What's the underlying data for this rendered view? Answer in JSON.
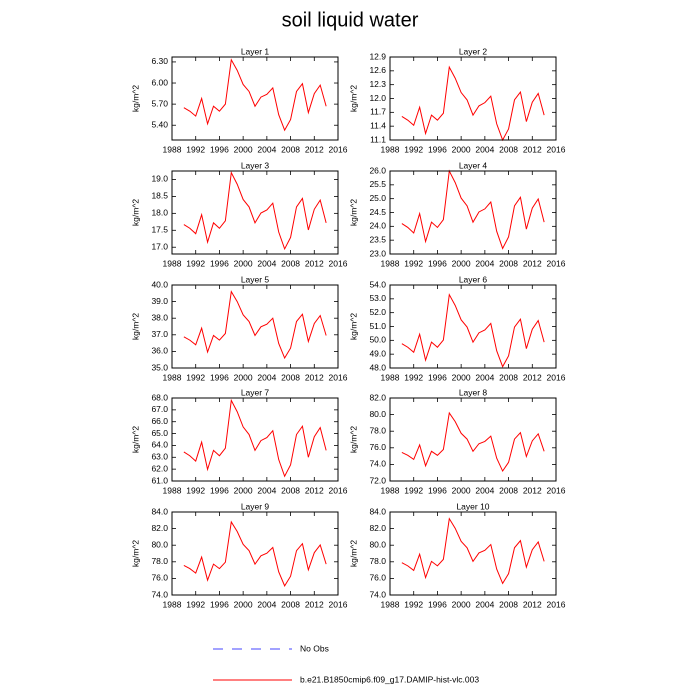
{
  "title": "soil liquid water",
  "legend": [
    {
      "name": "No Obs",
      "color": "#4444ff",
      "dash": true
    },
    {
      "name": "b.e21.B1850cmip6.f09_g17.DAMIP-hist-vlc.003",
      "color": "#ff0000"
    }
  ],
  "chart_data": [
    {
      "type": "line",
      "title": "Layer 1",
      "ylabel": "kg/m^2",
      "x": [
        1990,
        1991,
        1992,
        1993,
        1994,
        1995,
        1996,
        1997,
        1998,
        1999,
        2000,
        2001,
        2002,
        2003,
        2004,
        2005,
        2006,
        2007,
        2008,
        2009,
        2010,
        2011,
        2012,
        2013,
        2014
      ],
      "series": [
        {
          "color": "#ff0000",
          "values": [
            5.65,
            5.6,
            5.53,
            5.78,
            5.42,
            5.67,
            5.6,
            5.7,
            6.33,
            6.18,
            5.98,
            5.88,
            5.67,
            5.8,
            5.84,
            5.93,
            5.55,
            5.33,
            5.48,
            5.88,
            5.99,
            5.58,
            5.85,
            5.97,
            5.67
          ]
        }
      ],
      "xlim": [
        1988,
        2016
      ],
      "xticks": [
        1988,
        1992,
        1996,
        2000,
        2004,
        2008,
        2012,
        2016
      ],
      "ylim": [
        5.19,
        6.37
      ],
      "yticks": [
        {
          "value": 5.4,
          "label": "5.40"
        },
        {
          "value": 5.7,
          "label": "5.70"
        },
        {
          "value": 6.0,
          "label": "6.00"
        },
        {
          "value": 6.3,
          "label": "6.30"
        }
      ]
    },
    {
      "type": "line",
      "title": "Layer 2",
      "ylabel": "kg/m^2",
      "x": [
        1990,
        1991,
        1992,
        1993,
        1994,
        1995,
        1996,
        1997,
        1998,
        1999,
        2000,
        2001,
        2002,
        2003,
        2004,
        2005,
        2006,
        2007,
        2008,
        2009,
        2010,
        2011,
        2012,
        2013,
        2014
      ],
      "series": [
        {
          "color": "#ff0000",
          "values": [
            11.61,
            11.53,
            11.42,
            11.81,
            11.24,
            11.64,
            11.53,
            11.68,
            12.68,
            12.44,
            12.13,
            11.97,
            11.64,
            11.84,
            11.91,
            12.05,
            11.45,
            11.1,
            11.34,
            11.97,
            12.14,
            11.5,
            11.92,
            12.11,
            11.64
          ]
        }
      ],
      "xlim": [
        1988,
        2016
      ],
      "xticks": [
        1988,
        1992,
        1996,
        2000,
        2004,
        2008,
        2012,
        2016
      ],
      "ylim": [
        11.1,
        12.9
      ],
      "yticks": [
        11.1,
        11.4,
        11.7,
        {
          "value": 12,
          "label": "12.0"
        },
        12.3,
        12.6,
        12.9
      ]
    },
    {
      "type": "line",
      "title": "Layer 3",
      "ylabel": "kg/m^2",
      "x": [
        1990,
        1991,
        1992,
        1993,
        1994,
        1995,
        1996,
        1997,
        1998,
        1999,
        2000,
        2001,
        2002,
        2003,
        2004,
        2005,
        2006,
        2007,
        2008,
        2009,
        2010,
        2011,
        2012,
        2013,
        2014
      ],
      "series": [
        {
          "color": "#ff0000",
          "values": [
            17.67,
            17.56,
            17.4,
            17.96,
            17.15,
            17.72,
            17.56,
            17.78,
            19.2,
            18.86,
            18.41,
            18.19,
            17.72,
            18.01,
            18.1,
            18.3,
            17.45,
            16.95,
            17.29,
            18.19,
            18.44,
            17.51,
            18.12,
            18.39,
            17.72
          ]
        }
      ],
      "xlim": [
        1988,
        2016
      ],
      "xticks": [
        1988,
        1992,
        1996,
        2000,
        2004,
        2008,
        2012,
        2016
      ],
      "ylim": [
        16.8,
        19.25
      ],
      "yticks": [
        {
          "value": 17,
          "label": "17.0"
        },
        17.5,
        {
          "value": 18,
          "label": "18.0"
        },
        18.5,
        {
          "value": 19,
          "label": "19.0"
        }
      ]
    },
    {
      "type": "line",
      "title": "Layer 4",
      "ylabel": "kg/m^2",
      "x": [
        1990,
        1991,
        1992,
        1993,
        1994,
        1995,
        1996,
        1997,
        1998,
        1999,
        2000,
        2001,
        2002,
        2003,
        2004,
        2005,
        2006,
        2007,
        2008,
        2009,
        2010,
        2011,
        2012,
        2013,
        2014
      ],
      "series": [
        {
          "color": "#ff0000",
          "values": [
            24.1,
            23.96,
            23.76,
            24.46,
            23.45,
            24.15,
            23.96,
            24.24,
            26.0,
            25.58,
            25.02,
            24.74,
            24.15,
            24.52,
            24.63,
            24.88,
            23.82,
            23.2,
            23.62,
            24.74,
            25.05,
            23.9,
            24.66,
            24.99,
            24.15
          ]
        }
      ],
      "xlim": [
        1988,
        2016
      ],
      "xticks": [
        1988,
        1992,
        1996,
        2000,
        2004,
        2008,
        2012,
        2016
      ],
      "ylim": [
        23,
        26
      ],
      "yticks": [
        {
          "value": 23,
          "label": "23.0"
        },
        23.5,
        {
          "value": 24,
          "label": "24.0"
        },
        24.5,
        {
          "value": 25,
          "label": "25.0"
        },
        25.5,
        {
          "value": 26,
          "label": "26.0"
        }
      ]
    },
    {
      "type": "line",
      "title": "Layer 5",
      "ylabel": "kg/m^2",
      "x": [
        1990,
        1991,
        1992,
        1993,
        1994,
        1995,
        1996,
        1997,
        1998,
        1999,
        2000,
        2001,
        2002,
        2003,
        2004,
        2005,
        2006,
        2007,
        2008,
        2009,
        2010,
        2011,
        2012,
        2013,
        2014
      ],
      "series": [
        {
          "color": "#ff0000",
          "values": [
            36.88,
            36.68,
            36.4,
            37.4,
            35.96,
            36.96,
            36.68,
            37.08,
            39.6,
            39.0,
            38.2,
            37.8,
            36.96,
            37.48,
            37.64,
            38.0,
            36.48,
            35.6,
            36.2,
            37.8,
            38.24,
            36.6,
            37.68,
            38.16,
            36.96
          ]
        }
      ],
      "xlim": [
        1988,
        2016
      ],
      "xticks": [
        1988,
        1992,
        1996,
        2000,
        2004,
        2008,
        2012,
        2016
      ],
      "ylim": [
        35,
        40
      ],
      "yticks": [
        {
          "value": 35,
          "label": "35.0"
        },
        {
          "value": 36,
          "label": "36.0"
        },
        {
          "value": 37,
          "label": "37.0"
        },
        {
          "value": 38,
          "label": "38.0"
        },
        {
          "value": 39,
          "label": "39.0"
        },
        {
          "value": 40,
          "label": "40.0"
        }
      ]
    },
    {
      "type": "line",
      "title": "Layer 6",
      "ylabel": "kg/m^2",
      "x": [
        1990,
        1991,
        1992,
        1993,
        1994,
        1995,
        1996,
        1997,
        1998,
        1999,
        2000,
        2001,
        2002,
        2003,
        2004,
        2005,
        2006,
        2007,
        2008,
        2009,
        2010,
        2011,
        2012,
        2013,
        2014
      ],
      "series": [
        {
          "color": "#ff0000",
          "values": [
            49.76,
            49.5,
            49.14,
            50.44,
            48.57,
            49.87,
            49.5,
            50.02,
            53.3,
            52.52,
            51.48,
            50.96,
            49.87,
            50.54,
            50.75,
            51.22,
            49.24,
            48.1,
            48.88,
            50.96,
            51.53,
            49.4,
            50.8,
            51.43,
            49.87
          ]
        }
      ],
      "xlim": [
        1988,
        2016
      ],
      "xticks": [
        1988,
        1992,
        1996,
        2000,
        2004,
        2008,
        2012,
        2016
      ],
      "ylim": [
        48,
        54
      ],
      "yticks": [
        {
          "value": 48,
          "label": "48.0"
        },
        {
          "value": 49,
          "label": "49.0"
        },
        {
          "value": 50,
          "label": "50.0"
        },
        {
          "value": 51,
          "label": "51.0"
        },
        {
          "value": 52,
          "label": "52.0"
        },
        {
          "value": 53,
          "label": "53.0"
        },
        {
          "value": 54,
          "label": "54.0"
        }
      ]
    },
    {
      "type": "line",
      "title": "Layer 7",
      "ylabel": "kg/m^2",
      "x": [
        1990,
        1991,
        1992,
        1993,
        1994,
        1995,
        1996,
        1997,
        1998,
        1999,
        2000,
        2001,
        2002,
        2003,
        2004,
        2005,
        2006,
        2007,
        2008,
        2009,
        2010,
        2011,
        2012,
        2013,
        2014
      ],
      "series": [
        {
          "color": "#ff0000",
          "values": [
            63.45,
            63.13,
            62.68,
            64.28,
            61.98,
            63.58,
            63.13,
            63.77,
            67.8,
            66.84,
            65.56,
            64.92,
            63.58,
            64.41,
            64.66,
            65.24,
            62.81,
            61.4,
            62.36,
            64.92,
            65.62,
            63.0,
            64.73,
            65.5,
            63.58
          ]
        }
      ],
      "xlim": [
        1988,
        2016
      ],
      "xticks": [
        1988,
        1992,
        1996,
        2000,
        2004,
        2008,
        2012,
        2016
      ],
      "ylim": [
        61,
        68
      ],
      "yticks": [
        {
          "value": 61,
          "label": "61.0"
        },
        {
          "value": 62,
          "label": "62.0"
        },
        {
          "value": 63,
          "label": "63.0"
        },
        {
          "value": 64,
          "label": "64.0"
        },
        {
          "value": 65,
          "label": "65.0"
        },
        {
          "value": 66,
          "label": "66.0"
        },
        {
          "value": 67,
          "label": "67.0"
        },
        {
          "value": 68,
          "label": "68.0"
        }
      ]
    },
    {
      "type": "line",
      "title": "Layer 8",
      "ylabel": "kg/m^2",
      "x": [
        1990,
        1991,
        1992,
        1993,
        1994,
        1995,
        1996,
        1997,
        1998,
        1999,
        2000,
        2001,
        2002,
        2003,
        2004,
        2005,
        2006,
        2007,
        2008,
        2009,
        2010,
        2011,
        2012,
        2013,
        2014
      ],
      "series": [
        {
          "color": "#ff0000",
          "values": [
            75.44,
            75.09,
            74.6,
            76.35,
            73.83,
            75.58,
            75.09,
            75.79,
            80.2,
            79.15,
            77.75,
            77.05,
            75.58,
            76.49,
            76.77,
            77.4,
            74.74,
            73.2,
            74.25,
            77.05,
            77.82,
            74.95,
            76.84,
            77.68,
            75.58
          ]
        }
      ],
      "xlim": [
        1988,
        2016
      ],
      "xticks": [
        1988,
        1992,
        1996,
        2000,
        2004,
        2008,
        2012,
        2016
      ],
      "ylim": [
        72,
        82
      ],
      "yticks": [
        {
          "value": 72,
          "label": "72.0"
        },
        {
          "value": 74,
          "label": "74.0"
        },
        {
          "value": 76,
          "label": "76.0"
        },
        {
          "value": 78,
          "label": "78.0"
        },
        {
          "value": 80,
          "label": "80.0"
        },
        {
          "value": 82,
          "label": "82.0"
        }
      ]
    },
    {
      "type": "line",
      "title": "Layer 9",
      "ylabel": "kg/m^2",
      "x": [
        1990,
        1991,
        1992,
        1993,
        1994,
        1995,
        1996,
        1997,
        1998,
        1999,
        2000,
        2001,
        2002,
        2003,
        2004,
        2005,
        2006,
        2007,
        2008,
        2009,
        2010,
        2011,
        2012,
        2013,
        2014
      ],
      "series": [
        {
          "color": "#ff0000",
          "values": [
            77.56,
            77.18,
            76.64,
            78.57,
            75.79,
            77.72,
            77.18,
            77.95,
            82.8,
            81.65,
            80.11,
            79.34,
            77.72,
            78.72,
            79.03,
            79.72,
            76.79,
            75.1,
            76.26,
            79.34,
            80.18,
            77.03,
            79.1,
            80.03,
            77.72
          ]
        }
      ],
      "xlim": [
        1988,
        2016
      ],
      "xticks": [
        1988,
        1992,
        1996,
        2000,
        2004,
        2008,
        2012,
        2016
      ],
      "ylim": [
        74,
        84
      ],
      "yticks": [
        {
          "value": 74,
          "label": "74.0"
        },
        {
          "value": 76,
          "label": "76.0"
        },
        {
          "value": 78,
          "label": "78.0"
        },
        {
          "value": 80,
          "label": "80.0"
        },
        {
          "value": 82,
          "label": "82.0"
        },
        {
          "value": 84,
          "label": "84.0"
        }
      ]
    },
    {
      "type": "line",
      "title": "Layer 10",
      "ylabel": "kg/m^2",
      "x": [
        1990,
        1991,
        1992,
        1993,
        1994,
        1995,
        1996,
        1997,
        1998,
        1999,
        2000,
        2001,
        2002,
        2003,
        2004,
        2005,
        2006,
        2007,
        2008,
        2009,
        2010,
        2011,
        2012,
        2013,
        2014
      ],
      "series": [
        {
          "color": "#ff0000",
          "values": [
            77.9,
            77.51,
            76.96,
            78.91,
            76.1,
            78.05,
            77.51,
            78.29,
            83.2,
            82.03,
            80.47,
            79.69,
            78.05,
            79.07,
            79.38,
            80.08,
            77.12,
            75.4,
            76.57,
            79.69,
            80.55,
            77.35,
            79.46,
            80.39,
            78.05
          ]
        }
      ],
      "xlim": [
        1988,
        2016
      ],
      "xticks": [
        1988,
        1992,
        1996,
        2000,
        2004,
        2008,
        2012,
        2016
      ],
      "ylim": [
        74,
        84
      ],
      "yticks": [
        {
          "value": 74,
          "label": "74.0"
        },
        {
          "value": 76,
          "label": "76.0"
        },
        {
          "value": 78,
          "label": "78.0"
        },
        {
          "value": 80,
          "label": "80.0"
        },
        {
          "value": 82,
          "label": "82.0"
        },
        {
          "value": 84,
          "label": "84.0"
        }
      ]
    }
  ]
}
